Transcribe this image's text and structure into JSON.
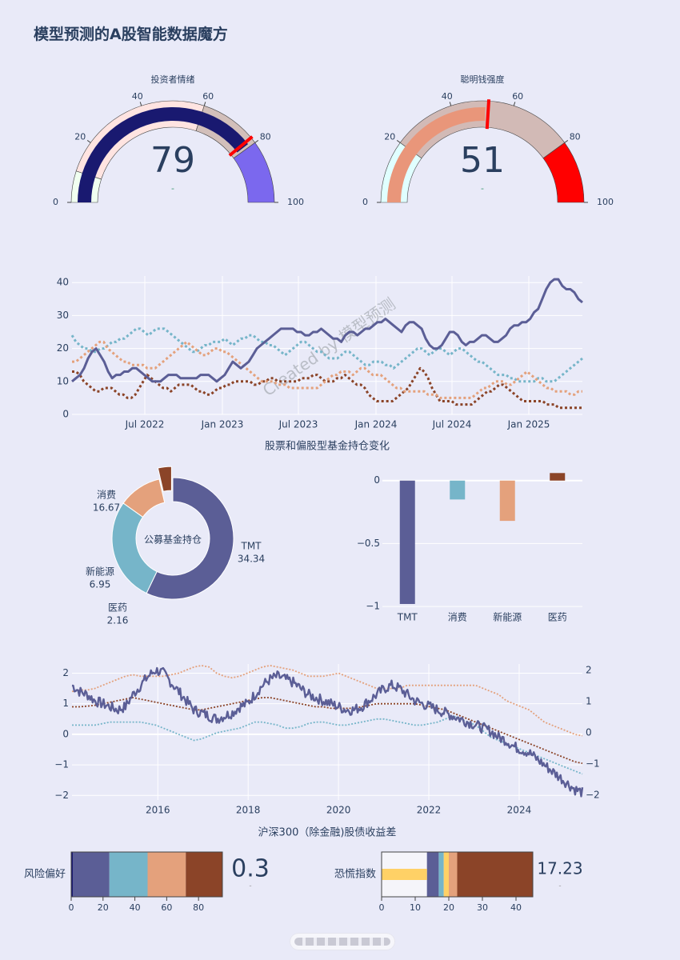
{
  "page": {
    "title": "模型预测的A股智能数据魔方"
  },
  "colors": {
    "purple": "#5b5e96",
    "teal": "#76b5c9",
    "salmon": "#e4a17c",
    "brown": "#8b4428",
    "navy": "#191970",
    "red": "#ff0000",
    "text": "#2a3f5f",
    "gold": "#ffd166"
  },
  "chart_data": [
    {
      "type": "gauge",
      "title": "投资者情绪",
      "value": 79,
      "value_label": "79",
      "delta_label": "-",
      "range": [
        0,
        100
      ],
      "ticks": [
        "0",
        "20",
        "40",
        "60",
        "80",
        "100"
      ],
      "steps": [
        {
          "range": [
            0,
            10
          ],
          "color": "#f0fff0"
        },
        {
          "range": [
            10,
            60
          ],
          "color": "#ffe4e1"
        },
        {
          "range": [
            60,
            80
          ],
          "color": "#d2bfba"
        },
        {
          "range": [
            80,
            100
          ],
          "color": "#7b68ee"
        }
      ],
      "bar_color": "#191970",
      "threshold": 78
    },
    {
      "type": "gauge",
      "title": "聪明钱强度",
      "value": 51,
      "value_label": "51",
      "delta_label": "-",
      "range": [
        0,
        100
      ],
      "ticks": [
        "0",
        "20",
        "40",
        "60",
        "80",
        "100"
      ],
      "steps": [
        {
          "range": [
            0,
            20
          ],
          "color": "#e0ffff"
        },
        {
          "range": [
            20,
            80
          ],
          "color": "#d2bab6"
        },
        {
          "range": [
            80,
            100
          ],
          "color": "#ff0000"
        }
      ],
      "bar_color": "#e9967a",
      "threshold": 52
    },
    {
      "type": "line",
      "title": "股票和偏股型基金持仓变化",
      "watermark": "Created by 模型预测",
      "x_ticks": [
        "Jul 2022",
        "Jan 2023",
        "Jul 2023",
        "Jan 2024",
        "Jul 2024",
        "Jan 2025"
      ],
      "y_ticks": [
        "0",
        "10",
        "20",
        "30",
        "40"
      ],
      "ylim": [
        0,
        42
      ],
      "x_range": [
        "2022-01",
        "2025-06"
      ],
      "series": [
        {
          "key": "purple",
          "style": "solid",
          "values": [
            10,
            11,
            12,
            14,
            17,
            19,
            20,
            18,
            16,
            13,
            11,
            12,
            12,
            13,
            13,
            14,
            14,
            13,
            12,
            11,
            10,
            10,
            10,
            11,
            12,
            12,
            12,
            11,
            11,
            11,
            11,
            11,
            12,
            12,
            12,
            11,
            10,
            11,
            12,
            14,
            16,
            15,
            14,
            15,
            16,
            18,
            20,
            21,
            22,
            23,
            24,
            25,
            26,
            26,
            26,
            26,
            25,
            25,
            24,
            24,
            25,
            25,
            26,
            25,
            24,
            23,
            23,
            22,
            24,
            25,
            25,
            24,
            25,
            26,
            26,
            27,
            28,
            28,
            29,
            28,
            27,
            26,
            25,
            27,
            28,
            28,
            27,
            26,
            23,
            21,
            20,
            20,
            21,
            23,
            25,
            25,
            24,
            22,
            21,
            22,
            22,
            23,
            24,
            24,
            23,
            22,
            22,
            23,
            24,
            26,
            27,
            27,
            28,
            28,
            29,
            31,
            32,
            35,
            38,
            40,
            41,
            41,
            39,
            38,
            38,
            37,
            35,
            34
          ]
        },
        {
          "key": "teal",
          "style": "dotted",
          "values": [
            24,
            22,
            21,
            20,
            20,
            19,
            19,
            20,
            20,
            21,
            22,
            22,
            23,
            23,
            24,
            25,
            26,
            26,
            25,
            24,
            25,
            26,
            26,
            26,
            25,
            24,
            23,
            22,
            21,
            20,
            19,
            19,
            20,
            21,
            21,
            22,
            22,
            22,
            23,
            22,
            21,
            22,
            23,
            23,
            24,
            24,
            23,
            22,
            22,
            21,
            21,
            20,
            19,
            18,
            19,
            20,
            21,
            22,
            22,
            21,
            20,
            19,
            19,
            18,
            17,
            17,
            17,
            18,
            19,
            19,
            18,
            17,
            16,
            15,
            15,
            16,
            16,
            16,
            15,
            15,
            14,
            15,
            16,
            17,
            18,
            19,
            20,
            20,
            19,
            18,
            19,
            20,
            20,
            19,
            18,
            19,
            20,
            20,
            19,
            18,
            17,
            16,
            16,
            15,
            14,
            13,
            12,
            12,
            12,
            11,
            11,
            10,
            10,
            10,
            10,
            10,
            11,
            11,
            10,
            10,
            10,
            11,
            12,
            13,
            14,
            15,
            16,
            17
          ]
        },
        {
          "key": "salmon",
          "style": "dotted",
          "values": [
            16,
            16,
            17,
            18,
            19,
            20,
            21,
            22,
            22,
            20,
            19,
            18,
            17,
            16,
            16,
            15,
            15,
            15,
            15,
            14,
            14,
            14,
            15,
            16,
            17,
            18,
            19,
            20,
            21,
            22,
            21,
            20,
            19,
            18,
            18,
            19,
            20,
            20,
            19,
            19,
            18,
            17,
            16,
            15,
            14,
            13,
            12,
            11,
            10,
            10,
            10,
            10,
            9,
            9,
            9,
            8,
            8,
            8,
            8,
            8,
            8,
            8,
            8,
            9,
            10,
            11,
            12,
            12,
            13,
            13,
            13,
            12,
            13,
            14,
            14,
            13,
            12,
            12,
            12,
            11,
            10,
            9,
            8,
            8,
            7,
            7,
            7,
            7,
            7,
            7,
            6,
            6,
            6,
            5,
            5,
            5,
            5,
            5,
            5,
            5,
            5,
            5,
            6,
            7,
            8,
            8,
            9,
            10,
            10,
            10,
            9,
            9,
            10,
            11,
            12,
            13,
            12,
            11,
            10,
            9,
            8,
            8,
            7,
            7,
            7,
            7,
            6,
            6,
            7,
            7
          ]
        },
        {
          "key": "brown",
          "style": "dotted",
          "values": [
            13,
            13,
            12,
            10,
            9,
            8,
            7,
            7,
            8,
            8,
            8,
            7,
            6,
            6,
            5,
            5,
            6,
            8,
            10,
            12,
            11,
            10,
            9,
            8,
            8,
            7,
            8,
            9,
            9,
            9,
            9,
            8,
            7,
            7,
            6,
            6,
            7,
            8,
            8,
            9,
            9,
            10,
            10,
            10,
            10,
            10,
            9,
            9,
            10,
            10,
            11,
            11,
            10,
            10,
            10,
            10,
            10,
            10,
            11,
            11,
            11,
            12,
            12,
            11,
            10,
            10,
            10,
            11,
            11,
            12,
            11,
            10,
            9,
            9,
            8,
            6,
            5,
            4,
            4,
            4,
            4,
            4,
            5,
            6,
            7,
            8,
            10,
            12,
            14,
            13,
            11,
            8,
            6,
            4,
            4,
            4,
            4,
            3,
            3,
            3,
            3,
            3,
            4,
            5,
            6,
            7,
            7,
            8,
            9,
            9,
            8,
            7,
            6,
            5,
            4,
            4,
            4,
            4,
            4,
            4,
            3,
            3,
            3,
            2,
            2,
            2,
            2,
            2,
            2,
            2
          ]
        }
      ]
    },
    {
      "type": "pie",
      "title": "公募基金持仓",
      "hole": true,
      "labels": [
        "TMT",
        "消费",
        "新能源",
        "医药"
      ],
      "values": [
        34.34,
        16.67,
        6.95,
        2.16
      ],
      "value_labels": [
        "34.34",
        "16.67",
        "6.95",
        "2.16"
      ],
      "colors": [
        "#5b5e96",
        "#76b5c9",
        "#e4a17c",
        "#8b4428"
      ],
      "pulled": "医药"
    },
    {
      "type": "bar",
      "categories": [
        "TMT",
        "消费",
        "新能源",
        "医药"
      ],
      "values": [
        -0.98,
        -0.15,
        -0.32,
        0.06
      ],
      "colors": [
        "#5b5e96",
        "#76b5c9",
        "#e4a17c",
        "#8b4428"
      ],
      "ylim": [
        -1.05,
        0.1
      ],
      "y_ticks": [
        "0",
        "−0.5",
        "−1"
      ]
    },
    {
      "type": "line",
      "title": "沪深300（除金融)股债收益差",
      "x_ticks": [
        "2016",
        "2018",
        "2020",
        "2022",
        "2024"
      ],
      "x_range": [
        2014.1,
        2025.4
      ],
      "left_y_ticks": [
        "2",
        "1",
        "0",
        "−1",
        "−2"
      ],
      "right_y_ticks": [
        "2",
        "1",
        "0",
        "−1",
        "−2"
      ],
      "ylim": [
        -2.15,
        2.3
      ],
      "series": [
        {
          "key": "purple",
          "style": "noisy",
          "values": [
            1.6,
            1.4,
            1.3,
            1.1,
            1.0,
            0.9,
            0.8,
            0.9,
            1.3,
            1.6,
            1.9,
            2.1,
            2.0,
            1.7,
            1.4,
            1.1,
            0.8,
            0.7,
            0.6,
            0.5,
            0.6,
            0.7,
            0.9,
            1.0,
            1.3,
            1.6,
            1.8,
            1.9,
            1.8,
            1.7,
            1.5,
            1.3,
            1.2,
            1.1,
            1.0,
            0.9,
            0.8,
            0.8,
            0.9,
            1.1,
            1.3,
            1.5,
            1.6,
            1.5,
            1.3,
            1.1,
            1.0,
            0.9,
            0.8,
            0.7,
            0.6,
            0.5,
            0.4,
            0.3,
            0.2,
            0.1,
            -0.1,
            -0.2,
            -0.4,
            -0.5,
            -0.6,
            -0.8,
            -1.0,
            -1.2,
            -1.4,
            -1.6,
            -1.8,
            -1.9
          ]
        },
        {
          "key": "salmon",
          "style": "dotted",
          "values": [
            1.4,
            1.45,
            1.45,
            1.5,
            1.6,
            1.7,
            1.8,
            1.9,
            1.95,
            1.9,
            1.9,
            1.9,
            1.9,
            1.95,
            2.0,
            2.1,
            2.2,
            2.25,
            2.2,
            2.0,
            1.9,
            1.85,
            1.9,
            2.0,
            2.1,
            2.2,
            2.25,
            2.2,
            2.15,
            2.1,
            2.0,
            1.9,
            1.9,
            1.9,
            1.95,
            2.0,
            1.9,
            1.8,
            1.7,
            1.6,
            1.5,
            1.5,
            1.5,
            1.5,
            1.6,
            1.6,
            1.6,
            1.6,
            1.6,
            1.6,
            1.6,
            1.6,
            1.6,
            1.6,
            1.5,
            1.4,
            1.3,
            1.1,
            1.0,
            0.9,
            0.8,
            0.6,
            0.4,
            0.3,
            0.2,
            0.1,
            0.0,
            -0.05
          ]
        },
        {
          "key": "brown",
          "style": "dotted",
          "values": [
            0.9,
            0.9,
            0.92,
            0.95,
            1.0,
            1.05,
            1.1,
            1.15,
            1.2,
            1.15,
            1.1,
            1.05,
            1.0,
            0.95,
            0.9,
            0.85,
            0.8,
            0.8,
            0.85,
            0.9,
            0.95,
            1.0,
            1.05,
            1.1,
            1.15,
            1.2,
            1.2,
            1.15,
            1.1,
            1.05,
            1.0,
            0.95,
            0.9,
            0.9,
            0.85,
            0.85,
            0.85,
            0.85,
            0.9,
            0.95,
            1.0,
            1.0,
            1.0,
            1.0,
            1.0,
            1.0,
            0.95,
            0.9,
            0.85,
            0.8,
            0.7,
            0.6,
            0.5,
            0.4,
            0.3,
            0.2,
            0.1,
            0.0,
            -0.1,
            -0.2,
            -0.3,
            -0.4,
            -0.5,
            -0.6,
            -0.7,
            -0.8,
            -0.9,
            -0.95
          ]
        },
        {
          "key": "teal",
          "style": "dotted",
          "values": [
            0.3,
            0.3,
            0.3,
            0.3,
            0.35,
            0.4,
            0.4,
            0.4,
            0.4,
            0.4,
            0.35,
            0.3,
            0.2,
            0.1,
            0.0,
            -0.1,
            -0.2,
            -0.15,
            -0.05,
            0.05,
            0.1,
            0.15,
            0.2,
            0.3,
            0.4,
            0.4,
            0.35,
            0.3,
            0.2,
            0.2,
            0.25,
            0.35,
            0.4,
            0.4,
            0.35,
            0.3,
            0.3,
            0.35,
            0.4,
            0.45,
            0.5,
            0.5,
            0.45,
            0.4,
            0.35,
            0.3,
            0.3,
            0.35,
            0.4,
            0.5,
            0.6,
            0.5,
            0.4,
            0.3,
            0.1,
            -0.1,
            -0.2,
            -0.3,
            -0.4,
            -0.5,
            -0.6,
            -0.7,
            -0.8,
            -0.9,
            -1.0,
            -1.1,
            -1.2,
            -1.3
          ]
        }
      ]
    },
    {
      "type": "bullet",
      "title": "风险偏好",
      "value": 0.3,
      "value_label": "0.3",
      "delta_label": "-",
      "range": [
        0,
        95
      ],
      "ticks": [
        "0",
        "20",
        "40",
        "60",
        "80"
      ],
      "tick_values": [
        0,
        20,
        40,
        60,
        80
      ],
      "steps": [
        {
          "range": [
            0,
            1
          ],
          "color": "#191970"
        },
        {
          "range": [
            1,
            24
          ],
          "color": "#5b5e96"
        },
        {
          "range": [
            24,
            48
          ],
          "color": "#76b5c9"
        },
        {
          "range": [
            48,
            72
          ],
          "color": "#e4a17c"
        },
        {
          "range": [
            72,
            95
          ],
          "color": "#8b4428"
        }
      ]
    },
    {
      "type": "bullet",
      "title": "恐慌指数",
      "value": 17.23,
      "value_label": "17.23",
      "delta_label": "-",
      "range": [
        0,
        45
      ],
      "ticks": [
        "0",
        "10",
        "20",
        "30",
        "40"
      ],
      "tick_values": [
        0,
        10,
        20,
        30,
        40
      ],
      "bar_value": 13.5,
      "bar_color": "#ffd166",
      "steps": [
        {
          "range": [
            0,
            13.5
          ],
          "color": "#f5f5fa"
        },
        {
          "range": [
            13.5,
            17
          ],
          "color": "#5b5e96"
        },
        {
          "range": [
            17,
            18.5
          ],
          "color": "#76b5c9"
        },
        {
          "range": [
            18.5,
            20
          ],
          "color": "#ffd166"
        },
        {
          "range": [
            20,
            22.5
          ],
          "color": "#e4a17c"
        },
        {
          "range": [
            22.5,
            45
          ],
          "color": "#8b4428"
        }
      ]
    }
  ]
}
